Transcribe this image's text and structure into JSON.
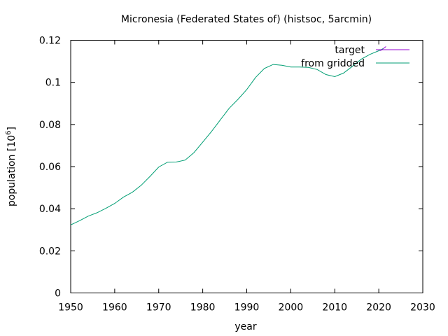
{
  "chart_data": {
    "type": "line",
    "title": "Micronesia (Federated States of) (histsoc, 5arcmin)",
    "xlabel": "year",
    "ylabel_main": "population [10",
    "ylabel_exp": "6",
    "ylabel_close": "]",
    "xlim": [
      1950,
      2030
    ],
    "ylim": [
      0,
      0.12
    ],
    "xticks": [
      1950,
      1960,
      1970,
      1980,
      1990,
      2000,
      2010,
      2020,
      2030
    ],
    "yticks": [
      0,
      0.02,
      0.04,
      0.06,
      0.08,
      0.1,
      0.12
    ],
    "xtick_labels": [
      "1950",
      "1960",
      "1970",
      "1980",
      "1990",
      "2000",
      "2010",
      "2020",
      "2030"
    ],
    "ytick_labels": [
      "0",
      "0.02",
      "0.04",
      "0.06",
      "0.08",
      "0.1",
      "0.12"
    ],
    "grid": false,
    "legend_position": "top-right",
    "series": [
      {
        "name": "target",
        "color": "#9400d3",
        "x": [
          2021
        ],
        "y": [
          0.116
        ]
      },
      {
        "name": "from gridded",
        "color": "#009e73",
        "x": [
          1950,
          1952,
          1954,
          1956,
          1958,
          1960,
          1962,
          1964,
          1966,
          1968,
          1970,
          1972,
          1974,
          1976,
          1978,
          1980,
          1982,
          1984,
          1986,
          1988,
          1990,
          1992,
          1994,
          1996,
          1998,
          2000,
          2002,
          2004,
          2006,
          2008,
          2010,
          2012,
          2014,
          2016,
          2018,
          2020,
          2021
        ],
        "y": [
          0.0323,
          0.0343,
          0.0365,
          0.0381,
          0.0402,
          0.0425,
          0.0455,
          0.0478,
          0.0511,
          0.0553,
          0.0598,
          0.0621,
          0.0622,
          0.0631,
          0.0666,
          0.0716,
          0.0767,
          0.0822,
          0.0877,
          0.0919,
          0.0966,
          0.1023,
          0.1066,
          0.1085,
          0.1081,
          0.1073,
          0.1073,
          0.1071,
          0.1061,
          0.1037,
          0.1027,
          0.1044,
          0.1076,
          0.111,
          0.1133,
          0.115,
          0.116
        ]
      }
    ]
  }
}
